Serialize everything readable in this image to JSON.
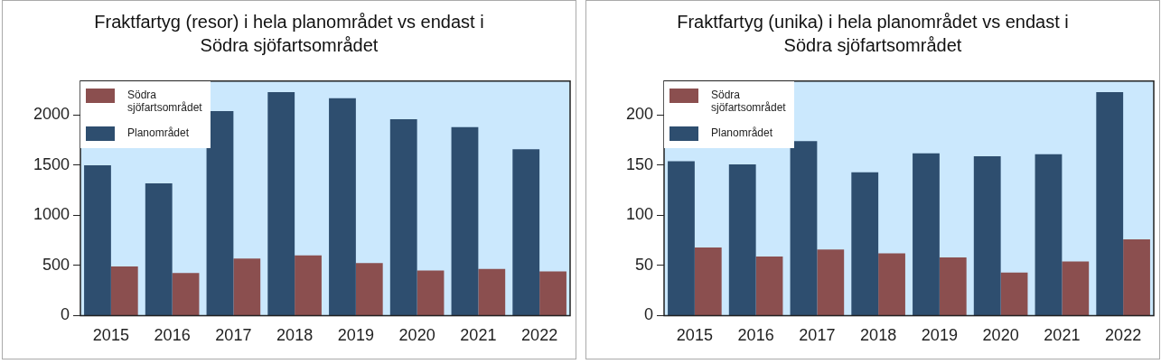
{
  "chart_data": [
    {
      "type": "bar",
      "title": "Fraktfartyg (resor) i hela planområdet vs endast i Södra sjöfartsområdet",
      "categories": [
        "2015",
        "2016",
        "2017",
        "2018",
        "2019",
        "2020",
        "2021",
        "2022"
      ],
      "series": [
        {
          "name": "Planområdet",
          "color": "#2e4e6f",
          "values": [
            1500,
            1320,
            2040,
            2230,
            2170,
            1960,
            1880,
            1660
          ]
        },
        {
          "name": "Södra sjöfartsområdet",
          "color": "#8b4f4f",
          "values": [
            490,
            425,
            570,
            600,
            525,
            450,
            465,
            440
          ]
        }
      ],
      "ylim": [
        0,
        2340
      ],
      "yticks": [
        0,
        500,
        1000,
        1500,
        2000
      ],
      "grid": false,
      "legend": "top left"
    },
    {
      "type": "bar",
      "title": "Fraktfartyg (unika) i hela planområdet vs endast i Södra sjöfartsområdet",
      "categories": [
        "2015",
        "2016",
        "2017",
        "2018",
        "2019",
        "2020",
        "2021",
        "2022"
      ],
      "series": [
        {
          "name": "Planområdet",
          "color": "#2e4e6f",
          "values": [
            154,
            151,
            174,
            143,
            162,
            159,
            161,
            223
          ]
        },
        {
          "name": "Södra sjöfartsområdet",
          "color": "#8b4f4f",
          "values": [
            68,
            59,
            66,
            62,
            58,
            43,
            54,
            76
          ]
        }
      ],
      "ylim": [
        0,
        234
      ],
      "yticks": [
        0,
        50,
        100,
        150,
        200
      ],
      "grid": false,
      "legend": "top left"
    }
  ]
}
